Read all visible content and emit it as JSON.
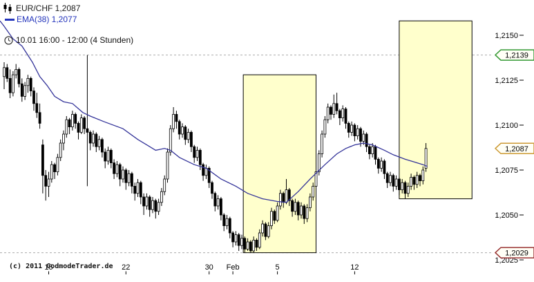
{
  "legend": {
    "symbol": {
      "label": "EUR/CHF 1,2087"
    },
    "indicator": {
      "label": "EMA(38) 1,2077",
      "color": "#2233bb"
    },
    "timeframe": {
      "label": "10.01 16:00 - 12:00 (4 Stunden)"
    }
  },
  "footer": {
    "copyright": "(c) 2011 GodmodeTrader.de"
  },
  "chart_data": {
    "type": "candlestick",
    "symbol": "EUR/CHF",
    "last_price_label": "1,2087",
    "interval": "4 Stunden",
    "session_label": "10.01 16:00 - 12:00",
    "price_note": "price = 1.2000 + pips * 0.0001",
    "indicator": {
      "name": "EMA(38)",
      "value_label": "1,2077",
      "color": "#333399"
    },
    "y_axis": {
      "side": "right",
      "ticks": [
        {
          "pips": 150,
          "label": "1,2150"
        },
        {
          "pips": 125,
          "label": "1,2125"
        },
        {
          "pips": 100,
          "label": "1,2100"
        },
        {
          "pips": 75,
          "label": "1,2075"
        },
        {
          "pips": 50,
          "label": "1,2050"
        },
        {
          "pips": 25,
          "label": "1,2025"
        }
      ]
    },
    "x_axis": {
      "labels": [
        {
          "label": "15",
          "index": 15
        },
        {
          "label": "22",
          "index": 41
        },
        {
          "label": "30",
          "index": 69
        },
        {
          "label": "Feb",
          "index": 77
        },
        {
          "label": "5",
          "index": 92
        },
        {
          "label": "12",
          "index": 118
        }
      ]
    },
    "price_tags": [
      {
        "label": "1,2139",
        "pips": 139,
        "color": "#339933",
        "dashed": true
      },
      {
        "label": "1,2087",
        "pips": 87,
        "color": "#cc9933",
        "dashed": false
      },
      {
        "label": "1,2029",
        "pips": 29,
        "color": "#993333",
        "dashed": true
      }
    ],
    "highlight_boxes": [
      {
        "from_index": 80.5,
        "to_index": 105,
        "top_pips": 128,
        "bottom_pips": 29
      },
      {
        "from_index": 133,
        "to_index": 157.5,
        "top_pips": 158,
        "bottom_pips": 59
      }
    ],
    "candles_ohlc_pips": [
      [
        127,
        135,
        120,
        132
      ],
      [
        132,
        134,
        124,
        126
      ],
      [
        126,
        131,
        115,
        118
      ],
      [
        118,
        130,
        116,
        128
      ],
      [
        128,
        134,
        126,
        131
      ],
      [
        131,
        132,
        121,
        123
      ],
      [
        123,
        126,
        113,
        116
      ],
      [
        116,
        124,
        114,
        122
      ],
      [
        122,
        128,
        118,
        126
      ],
      [
        126,
        127,
        116,
        119
      ],
      [
        119,
        121,
        108,
        112
      ],
      [
        112,
        118,
        104,
        107
      ],
      [
        107,
        112,
        98,
        101
      ],
      [
        89,
        92,
        62,
        72
      ],
      [
        72,
        75,
        58,
        66
      ],
      [
        66,
        74,
        60,
        70
      ],
      [
        70,
        80,
        68,
        78
      ],
      [
        78,
        79,
        70,
        74
      ],
      [
        74,
        84,
        72,
        82
      ],
      [
        82,
        92,
        80,
        90
      ],
      [
        90,
        97,
        86,
        95
      ],
      [
        95,
        105,
        93,
        103
      ],
      [
        103,
        104,
        95,
        99
      ],
      [
        99,
        108,
        97,
        106
      ],
      [
        106,
        107,
        98,
        101
      ],
      [
        101,
        102,
        92,
        96
      ],
      [
        96,
        106,
        95,
        104
      ],
      [
        104,
        105,
        95,
        98
      ],
      [
        98,
        139,
        66,
        96
      ],
      [
        96,
        97,
        86,
        90
      ],
      [
        90,
        97,
        88,
        95
      ],
      [
        95,
        96,
        85,
        88
      ],
      [
        88,
        94,
        86,
        92
      ],
      [
        92,
        93,
        82,
        85
      ],
      [
        85,
        87,
        76,
        80
      ],
      [
        80,
        88,
        78,
        86
      ],
      [
        86,
        87,
        76,
        79
      ],
      [
        79,
        81,
        70,
        73
      ],
      [
        73,
        80,
        71,
        78
      ],
      [
        78,
        79,
        66,
        70
      ],
      [
        70,
        77,
        68,
        75
      ],
      [
        75,
        76,
        64,
        68
      ],
      [
        68,
        75,
        66,
        73
      ],
      [
        73,
        74,
        62,
        66
      ],
      [
        66,
        68,
        58,
        62
      ],
      [
        62,
        70,
        60,
        68
      ],
      [
        68,
        69,
        56,
        60
      ],
      [
        60,
        62,
        50,
        55
      ],
      [
        55,
        62,
        53,
        60
      ],
      [
        60,
        61,
        49,
        53
      ],
      [
        53,
        60,
        51,
        58
      ],
      [
        58,
        59,
        48,
        52
      ],
      [
        52,
        59,
        50,
        57
      ],
      [
        57,
        65,
        55,
        63
      ],
      [
        63,
        72,
        61,
        70
      ],
      [
        70,
        87,
        68,
        85
      ],
      [
        85,
        100,
        83,
        98
      ],
      [
        98,
        110,
        96,
        106
      ],
      [
        106,
        108,
        98,
        102
      ],
      [
        102,
        103,
        92,
        95
      ],
      [
        95,
        101,
        93,
        99
      ],
      [
        99,
        100,
        89,
        92
      ],
      [
        92,
        98,
        90,
        96
      ],
      [
        96,
        97,
        85,
        88
      ],
      [
        88,
        89,
        79,
        82
      ],
      [
        82,
        88,
        80,
        86
      ],
      [
        86,
        87,
        75,
        78
      ],
      [
        78,
        79,
        69,
        72
      ],
      [
        72,
        78,
        70,
        76
      ],
      [
        76,
        77,
        65,
        68
      ],
      [
        68,
        69,
        59,
        62
      ],
      [
        62,
        63,
        52,
        55
      ],
      [
        55,
        61,
        53,
        59
      ],
      [
        59,
        60,
        47,
        50
      ],
      [
        50,
        51,
        41,
        44
      ],
      [
        44,
        50,
        42,
        48
      ],
      [
        48,
        49,
        37,
        40
      ],
      [
        40,
        41,
        32,
        35
      ],
      [
        35,
        41,
        33,
        39
      ],
      [
        39,
        40,
        30,
        33
      ],
      [
        33,
        39,
        31,
        37
      ],
      [
        37,
        38,
        29,
        31
      ],
      [
        31,
        37,
        30,
        35
      ],
      [
        35,
        36,
        29,
        30
      ],
      [
        30,
        38,
        29,
        36
      ],
      [
        36,
        37,
        30,
        32
      ],
      [
        32,
        42,
        31,
        40
      ],
      [
        40,
        47,
        38,
        45
      ],
      [
        45,
        46,
        36,
        38
      ],
      [
        38,
        46,
        37,
        44
      ],
      [
        44,
        54,
        42,
        52
      ],
      [
        52,
        53,
        45,
        47
      ],
      [
        47,
        57,
        46,
        55
      ],
      [
        55,
        64,
        53,
        62
      ],
      [
        62,
        63,
        54,
        57
      ],
      [
        57,
        70,
        56,
        64
      ],
      [
        64,
        65,
        55,
        58
      ],
      [
        58,
        59,
        49,
        52
      ],
      [
        52,
        59,
        50,
        57
      ],
      [
        57,
        58,
        47,
        50
      ],
      [
        50,
        57,
        48,
        55
      ],
      [
        55,
        56,
        45,
        48
      ],
      [
        48,
        56,
        46,
        54
      ],
      [
        54,
        62,
        52,
        60
      ],
      [
        60,
        68,
        58,
        66
      ],
      [
        66,
        76,
        64,
        74
      ],
      [
        74,
        86,
        72,
        84
      ],
      [
        84,
        97,
        82,
        95
      ],
      [
        95,
        105,
        93,
        103
      ],
      [
        103,
        112,
        101,
        110
      ],
      [
        110,
        111,
        103,
        106
      ],
      [
        106,
        117,
        104,
        112
      ],
      [
        112,
        118,
        106,
        108
      ],
      [
        108,
        109,
        100,
        104
      ],
      [
        104,
        111,
        102,
        109
      ],
      [
        109,
        110,
        98,
        101
      ],
      [
        101,
        102,
        93,
        96
      ],
      [
        96,
        102,
        94,
        100
      ],
      [
        100,
        101,
        91,
        94
      ],
      [
        94,
        100,
        92,
        98
      ],
      [
        98,
        99,
        88,
        91
      ],
      [
        91,
        97,
        89,
        95
      ],
      [
        95,
        96,
        85,
        88
      ],
      [
        88,
        89,
        81,
        84
      ],
      [
        84,
        90,
        82,
        88
      ],
      [
        88,
        89,
        78,
        81
      ],
      [
        81,
        82,
        73,
        76
      ],
      [
        76,
        82,
        74,
        80
      ],
      [
        80,
        81,
        70,
        73
      ],
      [
        73,
        74,
        65,
        68
      ],
      [
        68,
        74,
        66,
        72
      ],
      [
        72,
        73,
        63,
        66
      ],
      [
        66,
        72,
        64,
        70
      ],
      [
        70,
        71,
        61,
        64
      ],
      [
        64,
        70,
        62,
        68
      ],
      [
        68,
        69,
        59,
        62
      ],
      [
        62,
        68,
        60,
        66
      ],
      [
        66,
        73,
        64,
        71
      ],
      [
        71,
        72,
        64,
        67
      ],
      [
        67,
        74,
        65,
        72
      ],
      [
        72,
        73,
        66,
        69
      ],
      [
        69,
        77,
        67,
        75
      ],
      [
        76,
        90,
        74,
        87
      ]
    ],
    "ema_points": [
      [
        -1.4,
        158
      ],
      [
        0,
        155
      ],
      [
        3,
        148
      ],
      [
        6,
        144
      ],
      [
        9.5,
        135
      ],
      [
        12,
        127
      ],
      [
        14.5,
        122
      ],
      [
        17,
        116
      ],
      [
        20,
        113
      ],
      [
        23,
        112
      ],
      [
        26.5,
        107
      ],
      [
        29,
        105
      ],
      [
        33.5,
        102
      ],
      [
        40,
        98
      ],
      [
        45,
        92
      ],
      [
        48,
        89
      ],
      [
        51,
        86
      ],
      [
        54,
        87
      ],
      [
        56,
        86
      ],
      [
        59,
        82
      ],
      [
        64,
        78
      ],
      [
        68,
        76
      ],
      [
        73,
        70
      ],
      [
        78,
        66
      ],
      [
        82,
        62
      ],
      [
        87,
        59
      ],
      [
        92,
        57.5
      ],
      [
        95,
        57
      ],
      [
        99,
        63
      ],
      [
        103,
        70
      ],
      [
        108,
        78
      ],
      [
        112,
        84
      ],
      [
        115,
        87
      ],
      [
        118,
        89
      ],
      [
        121,
        90
      ],
      [
        124,
        89
      ],
      [
        128,
        86
      ],
      [
        131,
        83.5
      ],
      [
        135,
        81
      ],
      [
        138,
        79.5
      ],
      [
        141,
        78
      ],
      [
        142.5,
        77
      ]
    ],
    "colors": {
      "up_fill": "#ffffff",
      "down_fill": "#000000",
      "outline": "#000000",
      "ema": "#333399",
      "box_fill": "#ffffcc",
      "box_border": "#000000",
      "grid_dash": "#aaaaaa",
      "axis_text": "#000000",
      "tag_fill": "#fffff6"
    }
  }
}
